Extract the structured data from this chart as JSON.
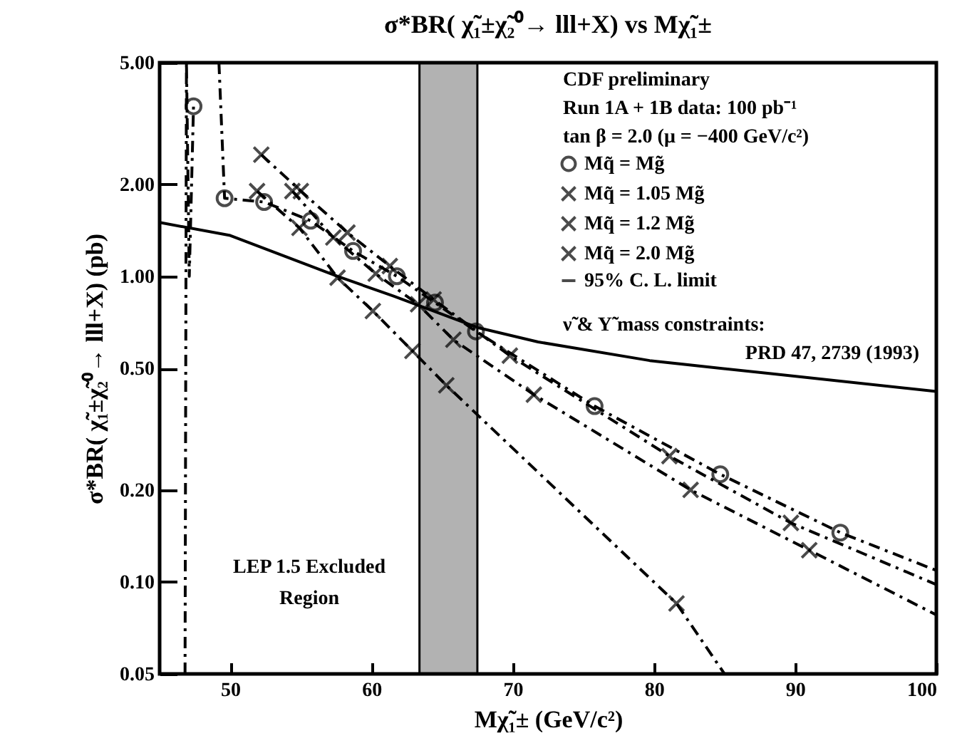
{
  "chart_data": {
    "type": "scatter",
    "title": "σ*BR( χ̃₁±χ̃₂⁰→ lll+X) vs Mχ̃₁±",
    "xlabel": "Mχ̃₁±  (GeV/c²)",
    "ylabel": "σ*BR( χ̃₁±χ̃₂⁰→ lll+X)  (pb)",
    "log": "y",
    "xlim": [
      45,
      100
    ],
    "xticks": [
      50,
      60,
      70,
      80,
      90,
      100
    ],
    "ylim": [
      0.05,
      5
    ],
    "yticks": [
      {
        "value": 0.05,
        "label": "0.05"
      },
      {
        "value": 0.1,
        "label": "0.10"
      },
      {
        "value": 0.2,
        "label": "0.20"
      },
      {
        "value": 0.5,
        "label": "0.50"
      },
      {
        "value": 1,
        "label": "1.00"
      },
      {
        "value": 2,
        "label": "2.00"
      },
      {
        "value": 5,
        "label": "5.00"
      }
    ],
    "grid": false,
    "legend": "top right",
    "series": [
      {
        "name": "Mq̃ = Mg̃",
        "marker": "circle",
        "color": "#000000",
        "x": [
          47.4,
          49.6,
          52.4,
          55.7,
          58.7,
          61.8,
          64.5,
          67.4,
          75.8,
          84.7,
          93.2
        ],
        "values": [
          3.6,
          1.8,
          1.75,
          1.52,
          1.21,
          1.0,
          0.82,
          0.66,
          0.376,
          0.225,
          0.145
        ]
      },
      {
        "name": "Mq̃ = 1.05 Mg̃",
        "marker": "cross",
        "color": "#000000",
        "x": [
          52.2,
          55.0,
          58.3,
          61.3,
          64.4,
          69.8,
          81.1,
          89.7
        ],
        "values": [
          2.5,
          1.9,
          1.39,
          1.08,
          0.84,
          0.55,
          0.258,
          0.156
        ]
      },
      {
        "name": "Mq̃ = 1.2 Mg̃",
        "marker": "cross",
        "color": "#000000",
        "x": [
          54.4,
          57.3,
          60.3,
          63.3,
          65.8,
          71.5,
          82.6,
          91.0
        ],
        "values": [
          1.9,
          1.34,
          1.02,
          0.81,
          0.62,
          0.41,
          0.2,
          0.127
        ]
      },
      {
        "name": "Mq̃ = 2.0 Mg̃",
        "marker": "cross",
        "color": "#000000",
        "x": [
          51.9,
          54.9,
          57.6,
          60.1,
          62.9,
          65.3,
          81.6
        ],
        "values": [
          1.9,
          1.44,
          0.99,
          0.77,
          0.57,
          0.44,
          0.085
        ]
      },
      {
        "name": "95% C. L. limit",
        "type": "line",
        "line_style": "solid",
        "color": "#000000",
        "x": [
          45,
          50,
          57.6,
          61.6,
          67.5,
          71.8,
          79.7,
          88.3,
          100
        ],
        "values": [
          1.5,
          1.36,
          1.0,
          0.86,
          0.68,
          0.61,
          0.53,
          0.48,
          0.42
        ]
      },
      {
        "type": "line",
        "line_style": "dashed",
        "color": "#000000",
        "x": [
          46.9,
          47.4,
          47.1,
          46.8
        ],
        "values": [
          5.0,
          3.6,
          1.0,
          0.05
        ]
      },
      {
        "type": "line",
        "line_style": "dashed",
        "color": "#000000",
        "x": [
          49.2,
          49.6,
          52.4,
          55.7,
          58.7,
          61.8,
          64.5,
          67.4,
          75.8,
          84.7,
          93.2,
          100
        ],
        "values": [
          5.0,
          1.8,
          1.75,
          1.52,
          1.21,
          1.0,
          0.82,
          0.66,
          0.376,
          0.225,
          0.145,
          0.109
        ]
      },
      {
        "type": "line",
        "line_style": "dashed",
        "color": "#000000",
        "x": [
          52.2,
          55.0,
          58.3,
          61.3,
          64.4,
          69.8,
          81.1,
          89.7,
          100
        ],
        "values": [
          2.5,
          1.9,
          1.39,
          1.08,
          0.84,
          0.55,
          0.258,
          0.156,
          0.098
        ]
      },
      {
        "type": "line",
        "line_style": "dashed",
        "color": "#000000",
        "x": [
          54.4,
          57.3,
          60.3,
          63.3,
          65.8,
          71.5,
          82.6,
          91.0,
          100
        ],
        "values": [
          1.9,
          1.34,
          1.02,
          0.81,
          0.62,
          0.41,
          0.2,
          0.127,
          0.078
        ]
      },
      {
        "type": "line",
        "line_style": "dashed",
        "color": "#000000",
        "x": [
          51.9,
          54.9,
          57.6,
          60.1,
          62.9,
          65.3,
          81.6,
          85.0
        ],
        "values": [
          1.9,
          1.44,
          0.99,
          0.77,
          0.57,
          0.44,
          0.085,
          0.05
        ]
      }
    ],
    "bands": [
      {
        "axis": "x",
        "from": 63.4,
        "to": 67.5,
        "color": "#000000"
      }
    ],
    "annotations": [
      "CDF preliminary",
      "Run 1A + 1B data: 100 pb⁻¹",
      "tan β = 2.0 (μ = −400 GeV/c²)",
      "ν̃ & Υ̃ mass constraints:",
      "PRD 47, 2739 (1993)",
      "LEP 1.5 Excluded Region"
    ]
  }
}
